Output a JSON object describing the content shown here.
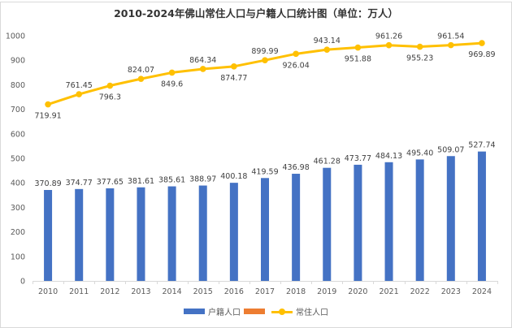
{
  "chart_data": {
    "type": "bar",
    "title": "2010-2024年佛山常住人口与户籍人口统计图（单位：万人）",
    "xlabel": "",
    "ylabel": "",
    "ylim": [
      0,
      1000
    ],
    "yticks": [
      0,
      100,
      200,
      300,
      400,
      500,
      600,
      700,
      800,
      900,
      1000
    ],
    "grid": false,
    "legend_position": "bottom",
    "categories": [
      "2010",
      "2011",
      "2012",
      "2013",
      "2014",
      "2015",
      "2016",
      "2017",
      "2018",
      "2019",
      "2020",
      "2021",
      "2022",
      "2023",
      "2024"
    ],
    "series": [
      {
        "name": "户籍人口",
        "type": "bar",
        "color": "#4472C4",
        "values": [
          370.89,
          374.77,
          377.65,
          381.61,
          385.61,
          388.97,
          400.18,
          419.59,
          436.98,
          461.28,
          473.77,
          484.13,
          495.4,
          509.07,
          527.74
        ],
        "labels": [
          "370.89",
          "374.77",
          "377.65",
          "381.61",
          "385.61",
          "388.97",
          "400.18",
          "419.59",
          "436.98",
          "461.28",
          "473.77",
          "484.13",
          "495.40",
          "509.07",
          "527.74"
        ]
      },
      {
        "name": "",
        "type": "bar",
        "color": "#ED7D31",
        "values": []
      },
      {
        "name": "常住人口",
        "type": "line",
        "color": "#FFC000",
        "values": [
          719.91,
          761.45,
          796.3,
          824.07,
          849.6,
          864.34,
          874.77,
          899.99,
          926.04,
          943.14,
          951.88,
          961.26,
          955.23,
          961.54,
          969.89
        ],
        "labels": [
          "719.91",
          "761.45",
          "796.3",
          "824.07",
          "849.6",
          "864.34",
          "874.77",
          "899.99",
          "926.04",
          "943.14",
          "951.88",
          "961.26",
          "955.23",
          "961.54",
          "969.89"
        ],
        "label_positions": [
          "below",
          "above",
          "below",
          "above",
          "below",
          "above",
          "below",
          "above",
          "below",
          "above",
          "below",
          "above",
          "below",
          "above",
          "below"
        ]
      }
    ]
  }
}
